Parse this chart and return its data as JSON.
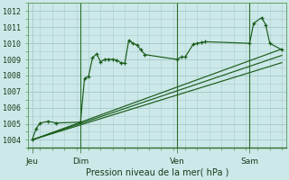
{
  "background_color": "#cce8e8",
  "grid_color": "#aacccc",
  "line_color": "#1a5c1a",
  "title": "Pression niveau de la mer( hPa )",
  "ylabel_values": [
    1004,
    1005,
    1006,
    1007,
    1008,
    1009,
    1010,
    1011,
    1012
  ],
  "ylim": [
    1003.6,
    1012.3
  ],
  "x_ticks_labels": [
    "Jeu",
    "Dim",
    "Ven",
    "Sam"
  ],
  "x_ticks_pos": [
    0,
    12,
    36,
    54
  ],
  "xlim": [
    -1,
    63
  ],
  "series1": [
    [
      0,
      1004.0
    ],
    [
      1,
      1004.7
    ],
    [
      2,
      1005.05
    ],
    [
      4,
      1005.15
    ],
    [
      6,
      1005.05
    ],
    [
      12,
      1005.1
    ],
    [
      13,
      1007.8
    ],
    [
      14,
      1007.95
    ],
    [
      15,
      1009.1
    ],
    [
      16,
      1009.35
    ],
    [
      17,
      1008.85
    ],
    [
      18,
      1009.0
    ],
    [
      19,
      1009.0
    ],
    [
      20,
      1009.0
    ],
    [
      21,
      1008.95
    ],
    [
      22,
      1008.8
    ],
    [
      23,
      1008.75
    ],
    [
      24,
      1010.2
    ],
    [
      25,
      1010.0
    ],
    [
      26,
      1009.9
    ],
    [
      27,
      1009.6
    ],
    [
      28,
      1009.3
    ],
    [
      36,
      1009.0
    ],
    [
      37,
      1009.15
    ],
    [
      38,
      1009.15
    ],
    [
      40,
      1009.95
    ],
    [
      41,
      1010.0
    ],
    [
      42,
      1010.05
    ],
    [
      43,
      1010.1
    ],
    [
      54,
      1010.0
    ],
    [
      55,
      1011.25
    ],
    [
      57,
      1011.6
    ],
    [
      58,
      1011.15
    ],
    [
      59,
      1010.0
    ],
    [
      62,
      1009.6
    ]
  ],
  "series2_straight": [
    [
      0,
      1004.0
    ],
    [
      62,
      1009.65
    ]
  ],
  "series3_straight": [
    [
      0,
      1004.0
    ],
    [
      62,
      1008.8
    ]
  ],
  "series4_straight": [
    [
      0,
      1004.0
    ],
    [
      62,
      1009.25
    ]
  ],
  "vlines_x": [
    12,
    36,
    54
  ],
  "vline_color": "#2d6e2d"
}
